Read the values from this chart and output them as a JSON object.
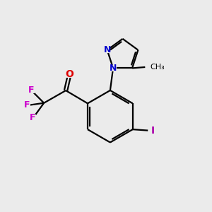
{
  "background_color": "#ebebeb",
  "bond_color": "#000000",
  "atom_colors": {
    "O": "#dd0000",
    "N": "#0000cc",
    "F": "#cc00cc",
    "I": "#aa00aa"
  },
  "figsize": [
    3.0,
    3.0
  ],
  "dpi": 100,
  "lw": 1.6,
  "fs": 9
}
